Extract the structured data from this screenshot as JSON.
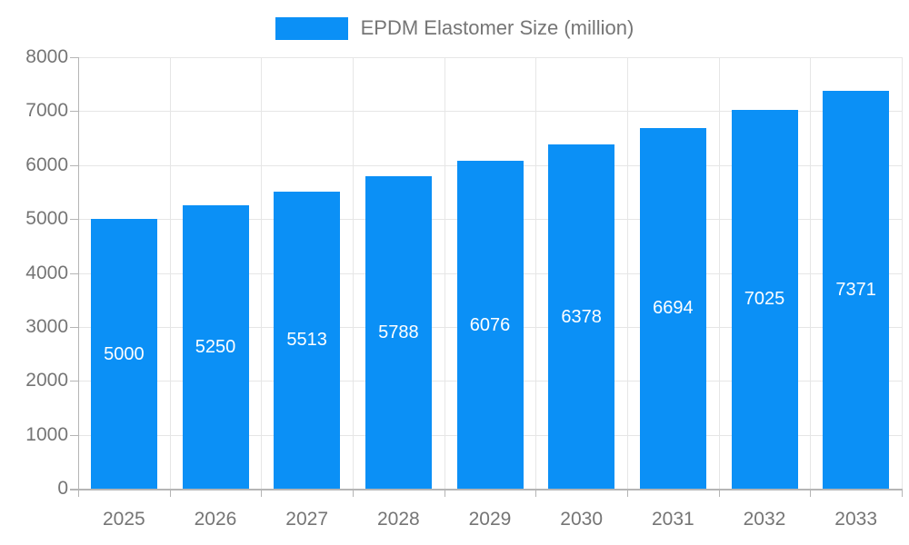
{
  "chart_data": {
    "type": "bar",
    "title": "EPDM Elastomer Size (million)",
    "legend": {
      "label": "EPDM Elastomer Size (million)",
      "position": "top"
    },
    "categories": [
      "2025",
      "2026",
      "2027",
      "2028",
      "2029",
      "2030",
      "2031",
      "2032",
      "2033"
    ],
    "series": [
      {
        "name": "EPDM Elastomer Size (million)",
        "values": [
          5000,
          5250,
          5513,
          5788,
          6076,
          6378,
          6694,
          7025,
          7371
        ]
      }
    ],
    "value_labels": [
      "5000",
      "5250",
      "5513",
      "5788",
      "6076",
      "6378",
      "6694",
      "7025",
      "7371"
    ],
    "xlabel": "",
    "ylabel": "",
    "ylim": [
      0,
      8000
    ],
    "yticks": [
      "0",
      "1000",
      "2000",
      "3000",
      "4000",
      "5000",
      "6000",
      "7000",
      "8000"
    ],
    "ytick_step": 1000,
    "grid": true,
    "colors": {
      "bar": "#0b90f6",
      "grid": "#e6e6e6",
      "axis": "#b5b5b5",
      "tick_label": "#757575",
      "legend_text": "#757575",
      "value_label": "#ffffff",
      "background": "#ffffff"
    }
  }
}
